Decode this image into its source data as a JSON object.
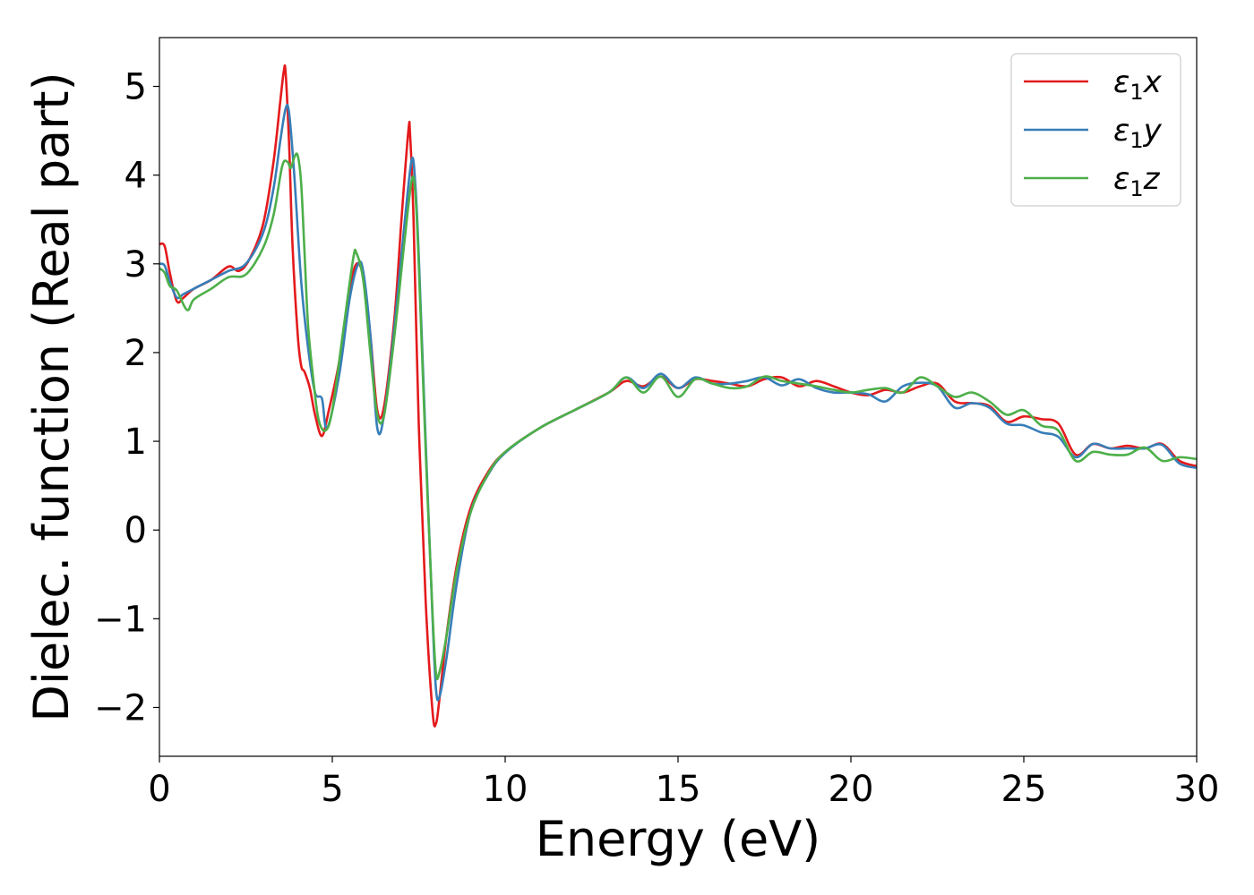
{
  "chart_data": {
    "type": "line",
    "xlabel": "Energy (eV)",
    "ylabel": "Dielec. function (Real part)",
    "xlim": [
      0,
      30
    ],
    "ylim": [
      -2.55,
      5.55
    ],
    "xticks": [
      0,
      5,
      10,
      15,
      20,
      25,
      30
    ],
    "yticks": [
      -2,
      -1,
      0,
      1,
      2,
      3,
      4,
      5
    ],
    "xtick_labels": [
      "0",
      "5",
      "10",
      "15",
      "20",
      "25",
      "30"
    ],
    "ytick_labels": [
      "−2",
      "−1",
      "0",
      "1",
      "2",
      "3",
      "4",
      "5"
    ],
    "grid": false,
    "legend_position": "top-right",
    "series": [
      {
        "name": "ε1x",
        "legend_main": "ε",
        "legend_sub": "1",
        "legend_var": "x",
        "color": "#e41a1c",
        "x": [
          0,
          0.15,
          0.3,
          0.5,
          0.7,
          1.0,
          1.5,
          2.0,
          2.3,
          2.6,
          3.0,
          3.3,
          3.5,
          3.6,
          3.65,
          3.75,
          3.85,
          4.0,
          4.1,
          4.2,
          4.35,
          4.5,
          4.7,
          4.9,
          5.2,
          5.5,
          5.7,
          5.9,
          6.1,
          6.3,
          6.5,
          6.8,
          7.0,
          7.2,
          7.25,
          7.35,
          7.5,
          7.7,
          7.9,
          8.0,
          8.1,
          8.3,
          8.6,
          9.0,
          9.5,
          10,
          11,
          12,
          13,
          13.5,
          14,
          14.5,
          15,
          15.5,
          16,
          16.5,
          17,
          17.5,
          18,
          18.5,
          19,
          19.5,
          20,
          20.5,
          21,
          21.5,
          22,
          22.5,
          23,
          23.5,
          24,
          24.5,
          25,
          25.5,
          26,
          26.5,
          27,
          27.5,
          28,
          28.5,
          29,
          29.5,
          30
        ],
        "y": [
          3.22,
          3.2,
          2.9,
          2.58,
          2.62,
          2.72,
          2.82,
          2.97,
          2.92,
          3.05,
          3.45,
          4.15,
          4.85,
          5.18,
          5.15,
          4.35,
          3.2,
          2.2,
          1.85,
          1.78,
          1.6,
          1.3,
          1.06,
          1.35,
          1.9,
          2.7,
          3.0,
          2.85,
          2.2,
          1.35,
          1.4,
          2.4,
          3.5,
          4.5,
          4.45,
          3.5,
          1.2,
          -0.8,
          -2.05,
          -2.18,
          -1.9,
          -1.2,
          -0.4,
          0.25,
          0.65,
          0.88,
          1.15,
          1.35,
          1.55,
          1.68,
          1.62,
          1.73,
          1.6,
          1.7,
          1.68,
          1.65,
          1.62,
          1.7,
          1.72,
          1.62,
          1.68,
          1.62,
          1.55,
          1.52,
          1.58,
          1.55,
          1.62,
          1.65,
          1.45,
          1.43,
          1.4,
          1.22,
          1.28,
          1.25,
          1.2,
          0.85,
          0.97,
          0.92,
          0.95,
          0.92,
          0.97,
          0.78,
          0.72
        ]
      },
      {
        "name": "ε1y",
        "legend_main": "ε",
        "legend_sub": "1",
        "legend_var": "y",
        "color": "#377eb8",
        "x": [
          0,
          0.15,
          0.3,
          0.5,
          0.7,
          1.0,
          1.5,
          2.0,
          2.5,
          3.0,
          3.3,
          3.5,
          3.65,
          3.75,
          3.9,
          4.1,
          4.3,
          4.5,
          4.7,
          4.85,
          5.2,
          5.5,
          5.75,
          5.9,
          6.1,
          6.3,
          6.5,
          6.8,
          7.1,
          7.3,
          7.4,
          7.5,
          7.7,
          7.9,
          8.0,
          8.1,
          8.3,
          8.6,
          9.0,
          9.5,
          10,
          11,
          12,
          13,
          13.5,
          14,
          14.5,
          15,
          15.5,
          16,
          16.5,
          17,
          17.5,
          18,
          18.5,
          19,
          19.5,
          20,
          20.5,
          21,
          21.5,
          22,
          22.5,
          23,
          23.5,
          24,
          24.5,
          25,
          25.5,
          26,
          26.5,
          27,
          27.5,
          28,
          28.5,
          29,
          29.5,
          30
        ],
        "y": [
          3.0,
          2.98,
          2.8,
          2.62,
          2.66,
          2.72,
          2.82,
          2.92,
          3.0,
          3.35,
          3.85,
          4.4,
          4.75,
          4.7,
          4.0,
          2.8,
          2.05,
          1.55,
          1.48,
          1.15,
          1.75,
          2.6,
          3.0,
          2.9,
          2.2,
          1.15,
          1.3,
          2.3,
          3.5,
          4.18,
          3.9,
          3.1,
          1.0,
          -1.0,
          -1.8,
          -1.88,
          -1.45,
          -0.6,
          0.2,
          0.62,
          0.87,
          1.15,
          1.35,
          1.55,
          1.72,
          1.6,
          1.76,
          1.6,
          1.72,
          1.65,
          1.65,
          1.68,
          1.72,
          1.63,
          1.7,
          1.6,
          1.55,
          1.55,
          1.53,
          1.45,
          1.62,
          1.66,
          1.62,
          1.38,
          1.43,
          1.38,
          1.2,
          1.18,
          1.1,
          1.05,
          0.82,
          0.97,
          0.92,
          0.92,
          0.92,
          0.96,
          0.75,
          0.7
        ]
      },
      {
        "name": "ε1z",
        "legend_main": "ε",
        "legend_sub": "1",
        "legend_var": "z",
        "color": "#4daf4a",
        "x": [
          0,
          0.15,
          0.3,
          0.5,
          0.8,
          1.0,
          1.5,
          2.0,
          2.5,
          3.0,
          3.3,
          3.55,
          3.7,
          3.8,
          3.9,
          4.0,
          4.1,
          4.2,
          4.3,
          4.45,
          4.6,
          4.8,
          5.0,
          5.3,
          5.6,
          5.7,
          5.9,
          6.1,
          6.3,
          6.5,
          6.8,
          7.1,
          7.3,
          7.4,
          7.5,
          7.7,
          7.9,
          8.0,
          8.1,
          8.3,
          8.6,
          9.0,
          9.5,
          10,
          11,
          12,
          13,
          13.5,
          14,
          14.5,
          15,
          15.5,
          16,
          16.5,
          17,
          17.5,
          18,
          18.5,
          19,
          19.5,
          20,
          20.5,
          21,
          21.5,
          22,
          22.5,
          23,
          23.5,
          24,
          24.5,
          25,
          25.5,
          26,
          26.5,
          27,
          27.5,
          28,
          28.5,
          29,
          29.5,
          30
        ],
        "y": [
          2.95,
          2.9,
          2.75,
          2.7,
          2.48,
          2.6,
          2.72,
          2.85,
          2.88,
          3.18,
          3.55,
          4.1,
          4.15,
          4.08,
          4.2,
          4.22,
          3.9,
          3.1,
          2.3,
          1.7,
          1.25,
          1.12,
          1.35,
          2.2,
          3.05,
          3.12,
          2.8,
          2.0,
          1.3,
          1.3,
          2.2,
          3.3,
          3.95,
          3.8,
          3.0,
          0.9,
          -0.95,
          -1.62,
          -1.6,
          -1.2,
          -0.45,
          0.2,
          0.63,
          0.88,
          1.15,
          1.35,
          1.55,
          1.72,
          1.55,
          1.73,
          1.5,
          1.7,
          1.65,
          1.6,
          1.62,
          1.73,
          1.68,
          1.65,
          1.62,
          1.58,
          1.55,
          1.58,
          1.6,
          1.55,
          1.72,
          1.62,
          1.5,
          1.55,
          1.45,
          1.3,
          1.35,
          1.18,
          1.12,
          0.78,
          0.88,
          0.85,
          0.85,
          0.93,
          0.78,
          0.82,
          0.8
        ]
      }
    ]
  }
}
